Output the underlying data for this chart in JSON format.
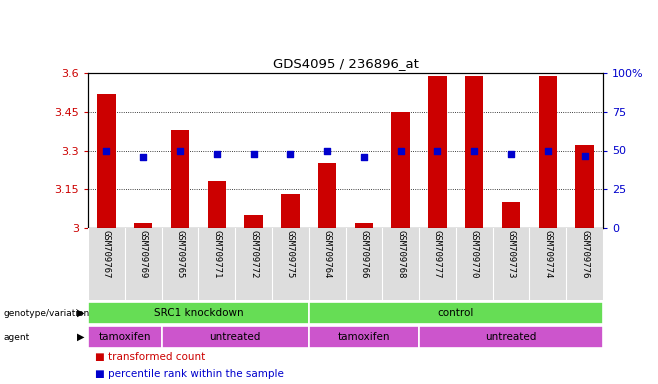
{
  "title": "GDS4095 / 236896_at",
  "samples": [
    "GSM709767",
    "GSM709769",
    "GSM709765",
    "GSM709771",
    "GSM709772",
    "GSM709775",
    "GSM709764",
    "GSM709766",
    "GSM709768",
    "GSM709777",
    "GSM709770",
    "GSM709773",
    "GSM709774",
    "GSM709776"
  ],
  "bar_values": [
    3.52,
    3.02,
    3.38,
    3.18,
    3.05,
    3.13,
    3.25,
    3.02,
    3.45,
    3.59,
    3.59,
    3.1,
    3.59,
    3.32
  ],
  "percentile_values": [
    3.3,
    3.275,
    3.3,
    3.285,
    3.285,
    3.285,
    3.3,
    3.275,
    3.3,
    3.3,
    3.3,
    3.285,
    3.3,
    3.28
  ],
  "ylim": [
    3.0,
    3.6
  ],
  "yticks": [
    3.0,
    3.15,
    3.3,
    3.45,
    3.6
  ],
  "ytick_labels": [
    "3",
    "3.15",
    "3.3",
    "3.45",
    "3.6"
  ],
  "right_yticks": [
    0,
    25,
    50,
    75,
    100
  ],
  "right_ytick_labels": [
    "0",
    "25",
    "50",
    "75",
    "100%"
  ],
  "bar_color": "#cc0000",
  "percentile_color": "#0000cc",
  "bg_color": "#ffffff",
  "geno_color": "#66dd55",
  "agent_color1": "#cc55cc",
  "agent_color2": "#cc55cc",
  "geno_groups": [
    {
      "label": "SRC1 knockdown",
      "start": 0,
      "end": 6
    },
    {
      "label": "control",
      "start": 6,
      "end": 14
    }
  ],
  "agent_groups": [
    {
      "label": "tamoxifen",
      "start": 0,
      "end": 2
    },
    {
      "label": "untreated",
      "start": 2,
      "end": 6
    },
    {
      "label": "tamoxifen",
      "start": 6,
      "end": 9
    },
    {
      "label": "untreated",
      "start": 9,
      "end": 14
    }
  ],
  "xlabel_color": "#cc0000",
  "ylabel_right_color": "#0000cc",
  "bar_width": 0.5
}
